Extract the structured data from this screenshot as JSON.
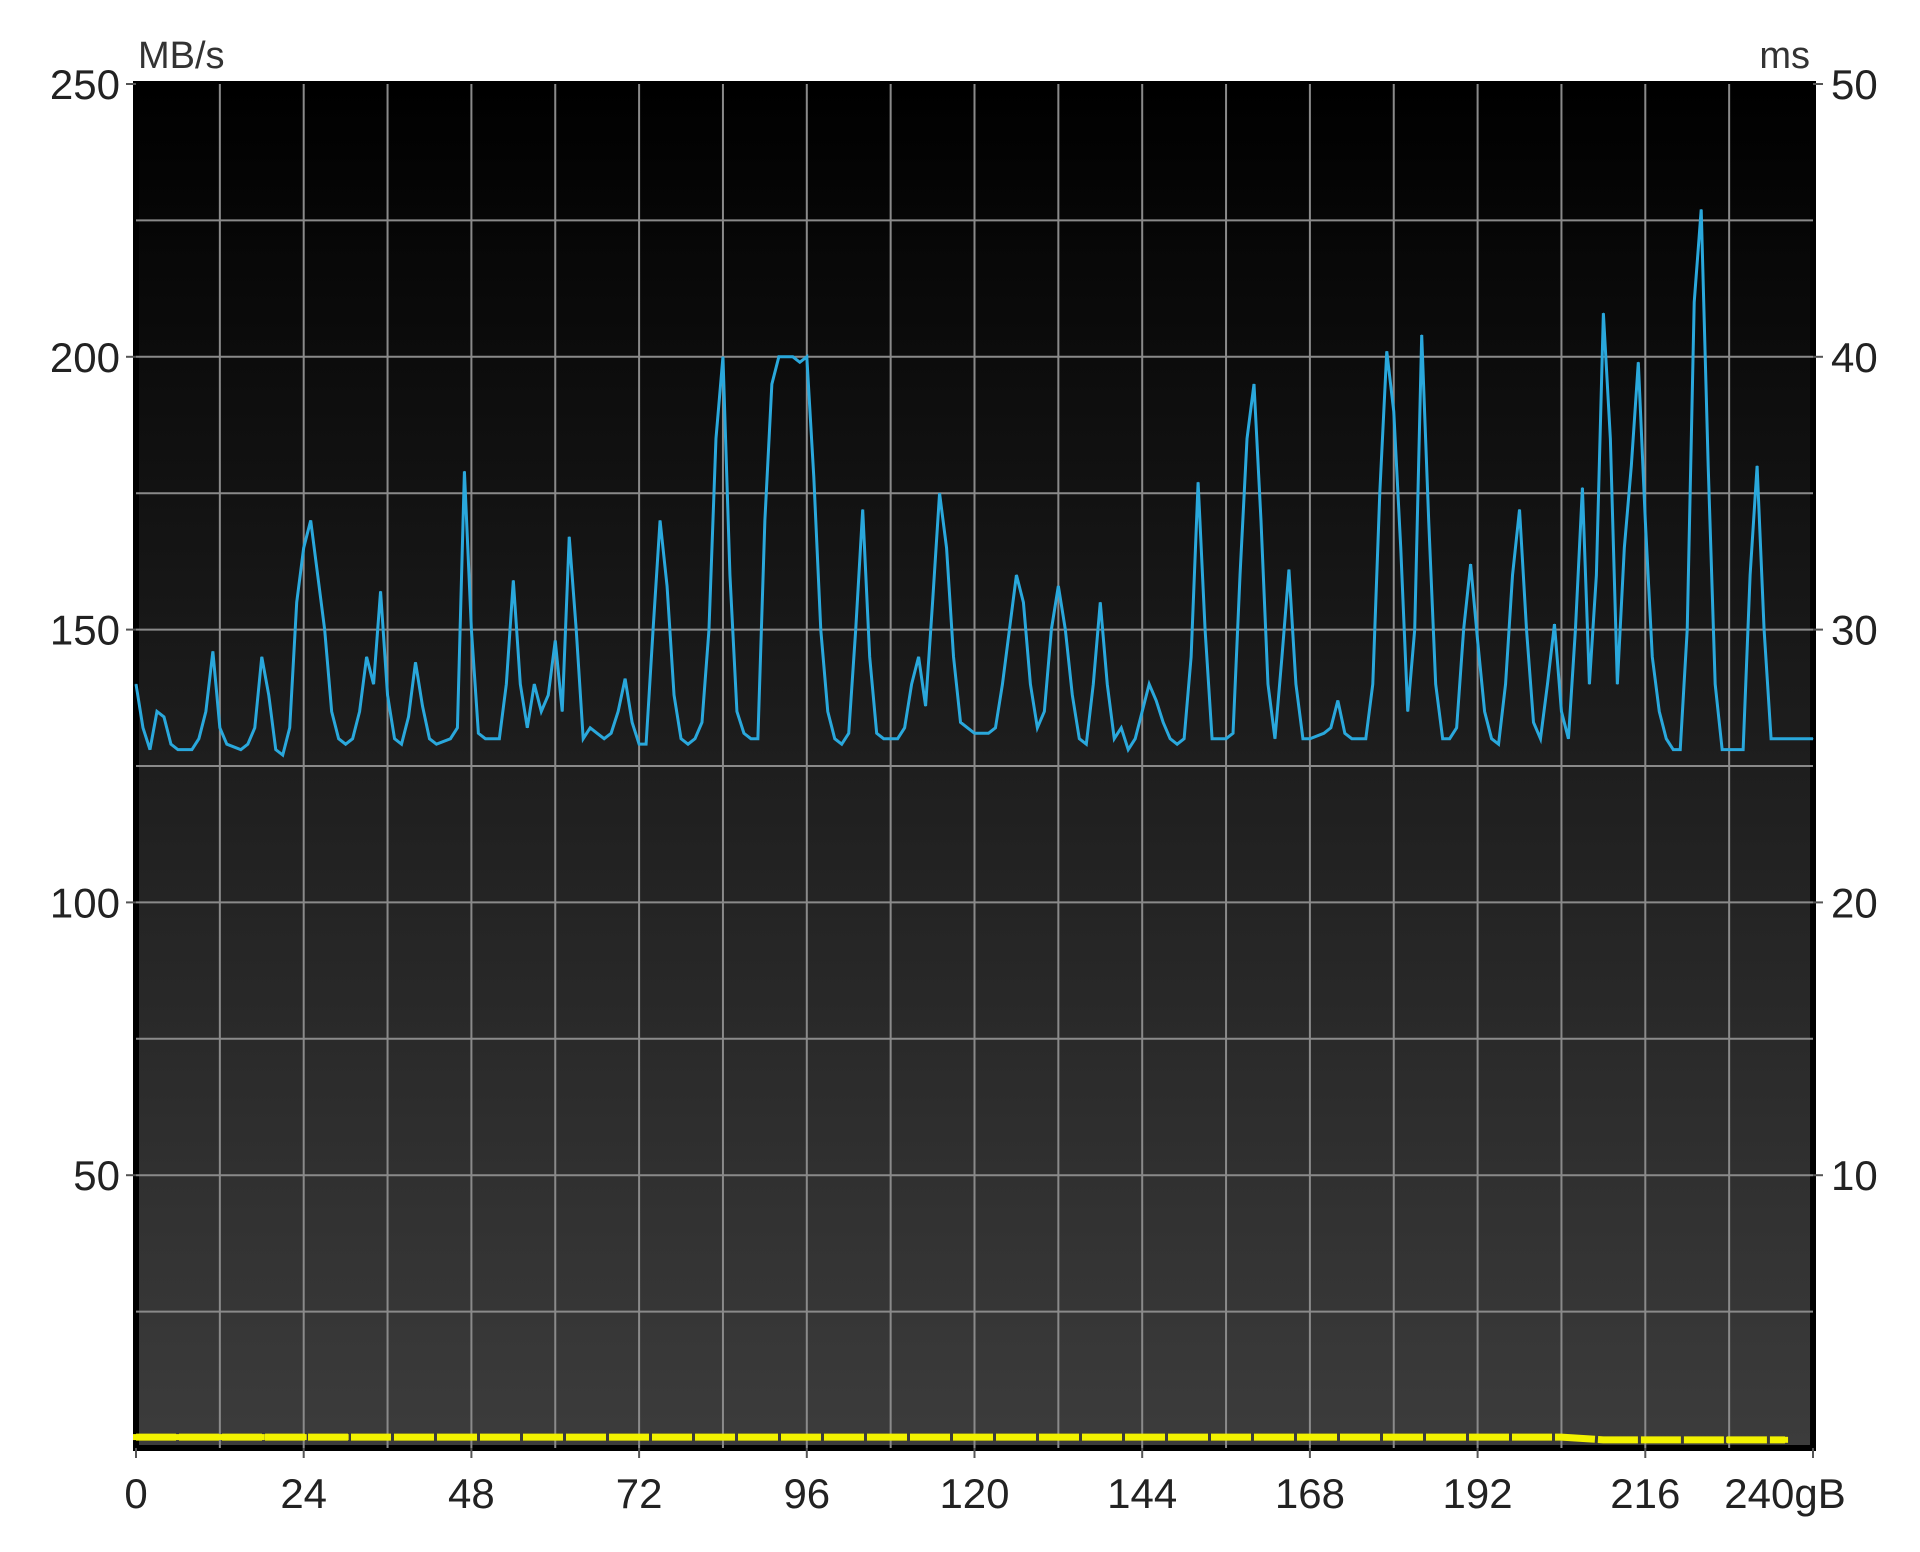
{
  "chart_data": {
    "type": "line",
    "title": "",
    "xlabel": "",
    "ylabel": "MB/s",
    "y2label": "ms",
    "x_unit": "gB",
    "xlim": [
      0,
      240
    ],
    "ylim": [
      0,
      250
    ],
    "y2lim": [
      0,
      50
    ],
    "grid": true,
    "x_ticks": [
      "0",
      "24",
      "48",
      "72",
      "96",
      "120",
      "144",
      "168",
      "192",
      "216",
      "240gB"
    ],
    "y_ticks": [
      "250",
      "200",
      "150",
      "100",
      "50"
    ],
    "y2_ticks": [
      "50",
      "40",
      "30",
      "20",
      "10"
    ],
    "colors": {
      "transfer_rate": "#2aa8dc",
      "access_time": "#f2f200",
      "grid": "#8a8a8a",
      "plot_top": "#000000",
      "plot_bottom": "#3c3c3c"
    },
    "series": [
      {
        "axis": "left",
        "points": [
          [
            0,
            140
          ],
          [
            1,
            132
          ],
          [
            2,
            128
          ],
          [
            3,
            135
          ],
          [
            4,
            134
          ],
          [
            5,
            129
          ],
          [
            6,
            128
          ],
          [
            8,
            128
          ],
          [
            9,
            130
          ],
          [
            10,
            135
          ],
          [
            11,
            146
          ],
          [
            12,
            132
          ],
          [
            13,
            129
          ],
          [
            15,
            128
          ],
          [
            16,
            129
          ],
          [
            17,
            132
          ],
          [
            18,
            145
          ],
          [
            19,
            138
          ],
          [
            20,
            128
          ],
          [
            21,
            127
          ],
          [
            22,
            132
          ],
          [
            23,
            155
          ],
          [
            24,
            165
          ],
          [
            25,
            170
          ],
          [
            26,
            160
          ],
          [
            27,
            150
          ],
          [
            28,
            135
          ],
          [
            29,
            130
          ],
          [
            30,
            129
          ],
          [
            31,
            130
          ],
          [
            32,
            135
          ],
          [
            33,
            145
          ],
          [
            34,
            140
          ],
          [
            35,
            157
          ],
          [
            36,
            138
          ],
          [
            37,
            130
          ],
          [
            38,
            129
          ],
          [
            39,
            134
          ],
          [
            40,
            144
          ],
          [
            41,
            136
          ],
          [
            42,
            130
          ],
          [
            43,
            129
          ],
          [
            45,
            130
          ],
          [
            46,
            132
          ],
          [
            47,
            179
          ],
          [
            48,
            150
          ],
          [
            49,
            131
          ],
          [
            50,
            130
          ],
          [
            52,
            130
          ],
          [
            53,
            140
          ],
          [
            54,
            159
          ],
          [
            55,
            140
          ],
          [
            56,
            132
          ],
          [
            57,
            140
          ],
          [
            58,
            135
          ],
          [
            59,
            138
          ],
          [
            60,
            148
          ],
          [
            61,
            135
          ],
          [
            62,
            167
          ],
          [
            63,
            150
          ],
          [
            64,
            130
          ],
          [
            65,
            132
          ],
          [
            66,
            131
          ],
          [
            67,
            130
          ],
          [
            68,
            131
          ],
          [
            69,
            135
          ],
          [
            70,
            141
          ],
          [
            71,
            133
          ],
          [
            72,
            129
          ],
          [
            73,
            129
          ],
          [
            74,
            150
          ],
          [
            75,
            170
          ],
          [
            76,
            158
          ],
          [
            77,
            138
          ],
          [
            78,
            130
          ],
          [
            79,
            129
          ],
          [
            80,
            130
          ],
          [
            81,
            133
          ],
          [
            82,
            150
          ],
          [
            83,
            185
          ],
          [
            84,
            200
          ],
          [
            85,
            160
          ],
          [
            86,
            135
          ],
          [
            87,
            131
          ],
          [
            88,
            130
          ],
          [
            89,
            130
          ],
          [
            90,
            170
          ],
          [
            91,
            195
          ],
          [
            92,
            200
          ],
          [
            94,
            200
          ],
          [
            95,
            199
          ],
          [
            96,
            200
          ],
          [
            97,
            178
          ],
          [
            98,
            150
          ],
          [
            99,
            135
          ],
          [
            100,
            130
          ],
          [
            101,
            129
          ],
          [
            102,
            131
          ],
          [
            103,
            150
          ],
          [
            104,
            172
          ],
          [
            105,
            145
          ],
          [
            106,
            131
          ],
          [
            107,
            130
          ],
          [
            109,
            130
          ],
          [
            110,
            132
          ],
          [
            111,
            140
          ],
          [
            112,
            145
          ],
          [
            113,
            136
          ],
          [
            114,
            155
          ],
          [
            115,
            175
          ],
          [
            116,
            165
          ],
          [
            117,
            145
          ],
          [
            118,
            133
          ],
          [
            119,
            132
          ],
          [
            120,
            131
          ],
          [
            122,
            131
          ],
          [
            123,
            132
          ],
          [
            124,
            140
          ],
          [
            125,
            150
          ],
          [
            126,
            160
          ],
          [
            127,
            155
          ],
          [
            128,
            140
          ],
          [
            129,
            132
          ],
          [
            130,
            135
          ],
          [
            131,
            150
          ],
          [
            132,
            158
          ],
          [
            133,
            150
          ],
          [
            134,
            138
          ],
          [
            135,
            130
          ],
          [
            136,
            129
          ],
          [
            137,
            140
          ],
          [
            138,
            155
          ],
          [
            139,
            140
          ],
          [
            140,
            130
          ],
          [
            141,
            132
          ],
          [
            142,
            128
          ],
          [
            143,
            130
          ],
          [
            144,
            135
          ],
          [
            145,
            140
          ],
          [
            146,
            137
          ],
          [
            147,
            133
          ],
          [
            148,
            130
          ],
          [
            149,
            129
          ],
          [
            150,
            130
          ],
          [
            151,
            145
          ],
          [
            152,
            177
          ],
          [
            153,
            150
          ],
          [
            154,
            130
          ],
          [
            155,
            130
          ],
          [
            156,
            130
          ],
          [
            157,
            131
          ],
          [
            158,
            160
          ],
          [
            159,
            185
          ],
          [
            160,
            195
          ],
          [
            161,
            170
          ],
          [
            162,
            140
          ],
          [
            163,
            130
          ],
          [
            164,
            145
          ],
          [
            165,
            161
          ],
          [
            166,
            140
          ],
          [
            167,
            130
          ],
          [
            168,
            130
          ],
          [
            170,
            131
          ],
          [
            171,
            132
          ],
          [
            172,
            137
          ],
          [
            173,
            131
          ],
          [
            174,
            130
          ],
          [
            176,
            130
          ],
          [
            177,
            140
          ],
          [
            178,
            175
          ],
          [
            179,
            201
          ],
          [
            180,
            190
          ],
          [
            181,
            165
          ],
          [
            182,
            135
          ],
          [
            183,
            150
          ],
          [
            184,
            204
          ],
          [
            185,
            170
          ],
          [
            186,
            140
          ],
          [
            187,
            130
          ],
          [
            188,
            130
          ],
          [
            189,
            132
          ],
          [
            190,
            150
          ],
          [
            191,
            162
          ],
          [
            192,
            148
          ],
          [
            193,
            135
          ],
          [
            194,
            130
          ],
          [
            195,
            129
          ],
          [
            196,
            140
          ],
          [
            197,
            160
          ],
          [
            198,
            172
          ],
          [
            199,
            150
          ],
          [
            200,
            133
          ],
          [
            201,
            130
          ],
          [
            202,
            140
          ],
          [
            203,
            151
          ],
          [
            204,
            135
          ],
          [
            205,
            130
          ],
          [
            206,
            150
          ],
          [
            207,
            176
          ],
          [
            208,
            140
          ],
          [
            209,
            160
          ],
          [
            210,
            208
          ],
          [
            211,
            185
          ],
          [
            212,
            140
          ],
          [
            213,
            165
          ],
          [
            214,
            180
          ],
          [
            215,
            199
          ],
          [
            216,
            170
          ],
          [
            217,
            145
          ],
          [
            218,
            135
          ],
          [
            219,
            130
          ],
          [
            220,
            128
          ],
          [
            221,
            128
          ],
          [
            222,
            150
          ],
          [
            223,
            210
          ],
          [
            224,
            227
          ],
          [
            225,
            180
          ],
          [
            226,
            140
          ],
          [
            227,
            128
          ],
          [
            228,
            128
          ],
          [
            230,
            128
          ],
          [
            231,
            160
          ],
          [
            232,
            180
          ],
          [
            233,
            150
          ],
          [
            234,
            130
          ],
          [
            235,
            130
          ],
          [
            240,
            130
          ]
        ]
      },
      {
        "axis": "right",
        "points": [
          [
            0,
            0.4
          ],
          [
            6,
            0.4
          ],
          [
            12,
            0.4
          ],
          [
            18,
            0.4
          ],
          [
            24,
            0.4
          ],
          [
            30,
            0.4
          ],
          [
            36,
            0.4
          ],
          [
            42,
            0.4
          ],
          [
            48,
            0.4
          ],
          [
            54,
            0.4
          ],
          [
            60,
            0.4
          ],
          [
            66,
            0.4
          ],
          [
            72,
            0.4
          ],
          [
            78,
            0.4
          ],
          [
            84,
            0.4
          ],
          [
            90,
            0.4
          ],
          [
            96,
            0.4
          ],
          [
            102,
            0.4
          ],
          [
            108,
            0.4
          ],
          [
            114,
            0.4
          ],
          [
            120,
            0.4
          ],
          [
            126,
            0.4
          ],
          [
            132,
            0.4
          ],
          [
            138,
            0.4
          ],
          [
            144,
            0.4
          ],
          [
            150,
            0.4
          ],
          [
            156,
            0.4
          ],
          [
            162,
            0.4
          ],
          [
            168,
            0.4
          ],
          [
            174,
            0.4
          ],
          [
            180,
            0.4
          ],
          [
            186,
            0.4
          ],
          [
            192,
            0.4
          ],
          [
            198,
            0.4
          ],
          [
            204,
            0.4
          ],
          [
            210,
            0.3
          ],
          [
            216,
            0.3
          ],
          [
            222,
            0.3
          ],
          [
            228,
            0.3
          ],
          [
            236,
            0.3
          ]
        ]
      }
    ]
  }
}
